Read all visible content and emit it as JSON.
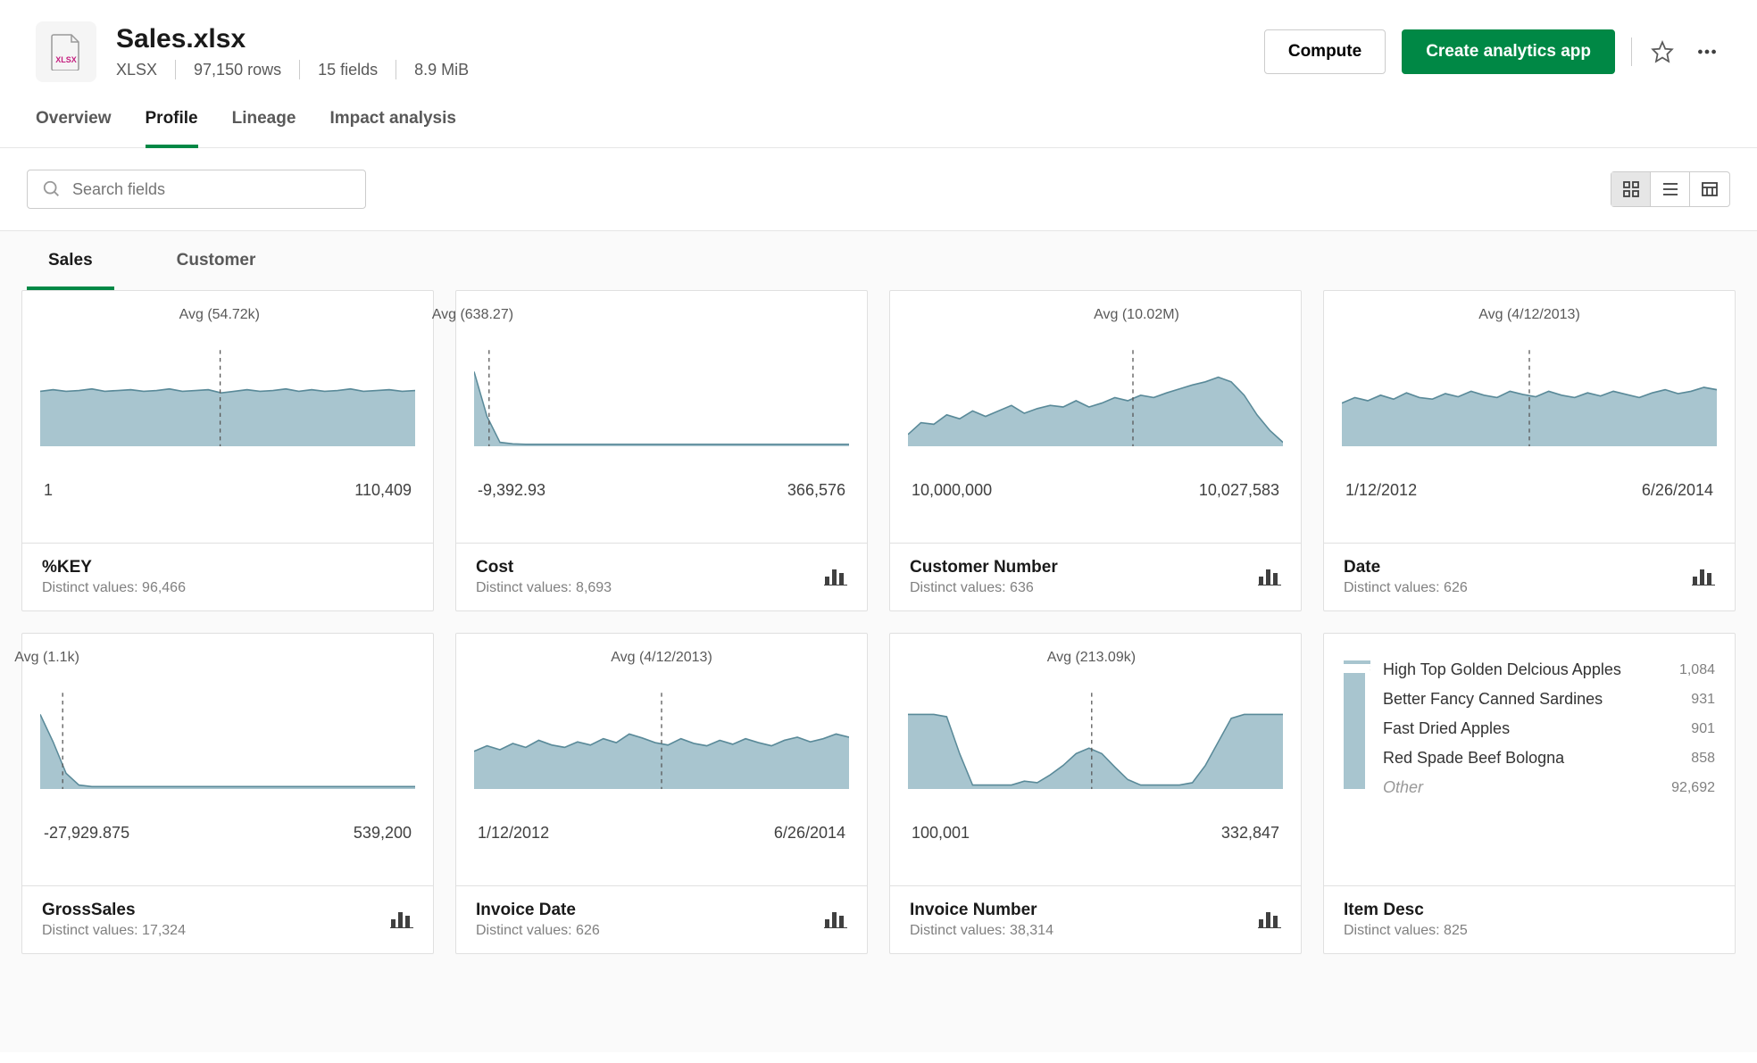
{
  "file": {
    "title": "Sales.xlsx",
    "type": "XLSX",
    "rows": "97,150 rows",
    "fields": "15 fields",
    "size": "8.9 MiB"
  },
  "actions": {
    "compute": "Compute",
    "createApp": "Create analytics app"
  },
  "tabs": {
    "overview": "Overview",
    "profile": "Profile",
    "lineage": "Lineage",
    "impact": "Impact analysis"
  },
  "search": {
    "placeholder": "Search fields"
  },
  "subTabs": {
    "sales": "Sales",
    "customer": "Customer"
  },
  "colors": {
    "chartFill": "#a8c5cf",
    "chartStroke": "#5a8a99",
    "accent": "#008845",
    "iconGray": "#404040"
  },
  "cards": [
    {
      "id": "key",
      "fieldName": "%KEY",
      "distinct": "Distinct values: 96,466",
      "avgLabel": "Avg (54.72k)",
      "avgPos": 0.48,
      "minLabel": "1",
      "maxLabel": "110,409",
      "hasIcon": false,
      "kind": "line",
      "points": [
        0.3,
        0.28,
        0.3,
        0.29,
        0.27,
        0.3,
        0.29,
        0.28,
        0.3,
        0.29,
        0.27,
        0.3,
        0.29,
        0.28,
        0.32,
        0.3,
        0.28,
        0.3,
        0.29,
        0.27,
        0.3,
        0.28,
        0.3,
        0.29,
        0.27,
        0.3,
        0.29,
        0.28,
        0.3,
        0.29
      ]
    },
    {
      "id": "cost",
      "fieldName": "Cost",
      "distinct": "Distinct values: 8,693",
      "avgLabel": "Avg (638.27)",
      "avgPos": 0.04,
      "minLabel": "-9,392.93",
      "maxLabel": "366,576",
      "hasIcon": true,
      "kind": "line",
      "points": [
        0.05,
        0.62,
        0.95,
        0.97,
        0.975,
        0.975,
        0.975,
        0.975,
        0.975,
        0.975,
        0.975,
        0.975,
        0.975,
        0.975,
        0.975,
        0.975,
        0.975,
        0.975,
        0.975,
        0.975,
        0.975,
        0.975,
        0.975,
        0.975,
        0.975,
        0.975,
        0.975,
        0.975,
        0.975,
        0.975
      ]
    },
    {
      "id": "customer",
      "fieldName": "Customer Number",
      "distinct": "Distinct values: 636",
      "avgLabel": "Avg (10.02M)",
      "avgPos": 0.6,
      "minLabel": "10,000,000",
      "maxLabel": "10,027,583",
      "hasIcon": true,
      "kind": "line",
      "points": [
        0.85,
        0.7,
        0.72,
        0.6,
        0.65,
        0.55,
        0.62,
        0.55,
        0.48,
        0.58,
        0.52,
        0.48,
        0.5,
        0.42,
        0.5,
        0.45,
        0.38,
        0.42,
        0.35,
        0.38,
        0.32,
        0.27,
        0.22,
        0.18,
        0.12,
        0.18,
        0.35,
        0.6,
        0.8,
        0.95
      ]
    },
    {
      "id": "date",
      "fieldName": "Date",
      "distinct": "Distinct values: 626",
      "avgLabel": "Avg (4/12/2013)",
      "avgPos": 0.5,
      "minLabel": "1/12/2012",
      "maxLabel": "6/26/2014",
      "hasIcon": true,
      "kind": "line",
      "points": [
        0.45,
        0.38,
        0.42,
        0.35,
        0.4,
        0.32,
        0.38,
        0.4,
        0.33,
        0.37,
        0.3,
        0.35,
        0.38,
        0.3,
        0.34,
        0.37,
        0.3,
        0.35,
        0.38,
        0.32,
        0.36,
        0.3,
        0.34,
        0.38,
        0.32,
        0.28,
        0.33,
        0.3,
        0.25,
        0.28
      ]
    },
    {
      "id": "gross",
      "fieldName": "GrossSales",
      "distinct": "Distinct values: 17,324",
      "avgLabel": "Avg (1.1k)",
      "avgPos": 0.06,
      "minLabel": "-27,929.875",
      "maxLabel": "539,200",
      "hasIcon": true,
      "kind": "line",
      "points": [
        0.05,
        0.4,
        0.8,
        0.95,
        0.97,
        0.97,
        0.97,
        0.97,
        0.97,
        0.97,
        0.97,
        0.97,
        0.97,
        0.97,
        0.97,
        0.97,
        0.97,
        0.97,
        0.97,
        0.97,
        0.97,
        0.97,
        0.97,
        0.97,
        0.97,
        0.97,
        0.97,
        0.97,
        0.97,
        0.97
      ]
    },
    {
      "id": "invdate",
      "fieldName": "Invoice Date",
      "distinct": "Distinct values: 626",
      "avgLabel": "Avg (4/12/2013)",
      "avgPos": 0.5,
      "minLabel": "1/12/2012",
      "maxLabel": "6/26/2014",
      "hasIcon": true,
      "kind": "line",
      "points": [
        0.52,
        0.45,
        0.5,
        0.42,
        0.47,
        0.38,
        0.44,
        0.47,
        0.4,
        0.44,
        0.36,
        0.41,
        0.3,
        0.35,
        0.41,
        0.44,
        0.36,
        0.42,
        0.45,
        0.38,
        0.43,
        0.36,
        0.41,
        0.45,
        0.38,
        0.34,
        0.4,
        0.36,
        0.3,
        0.34
      ]
    },
    {
      "id": "invnum",
      "fieldName": "Invoice Number",
      "distinct": "Distinct values: 38,314",
      "avgLabel": "Avg (213.09k)",
      "avgPos": 0.49,
      "minLabel": "100,001",
      "maxLabel": "332,847",
      "hasIcon": true,
      "kind": "line",
      "points": [
        0.05,
        0.05,
        0.05,
        0.08,
        0.55,
        0.95,
        0.95,
        0.95,
        0.95,
        0.9,
        0.92,
        0.82,
        0.7,
        0.55,
        0.48,
        0.55,
        0.72,
        0.88,
        0.95,
        0.95,
        0.95,
        0.95,
        0.92,
        0.7,
        0.4,
        0.1,
        0.05,
        0.05,
        0.05,
        0.05
      ]
    },
    {
      "id": "itemdesc",
      "fieldName": "Item Desc",
      "distinct": "Distinct values: 825",
      "hasIcon": false,
      "kind": "list",
      "items": [
        {
          "label": "High Top Golden Delcious Apples",
          "count": "1,084"
        },
        {
          "label": "Better Fancy Canned Sardines",
          "count": "931"
        },
        {
          "label": "Fast Dried Apples",
          "count": "901"
        },
        {
          "label": "Red Spade Beef Bologna",
          "count": "858"
        },
        {
          "label": "Other",
          "other": true,
          "count": "92,692"
        }
      ]
    }
  ]
}
